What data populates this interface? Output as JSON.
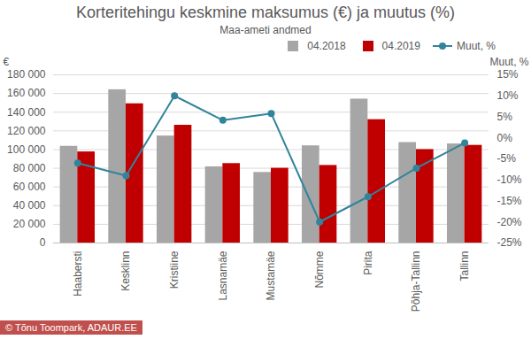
{
  "chart_data": {
    "type": "bar",
    "title": "Korteritehingu keskmine maksumus (€) ja muutus (%)",
    "subtitle": "Maa-ameti andmed",
    "caption": "© Tõnu Toompark, ADAUR.EE",
    "ylabel": "€",
    "y2label": "Muut, %",
    "categories": [
      "Haabersti",
      "Kesklinn",
      "Kristiine",
      "Lasnamäe",
      "Mustamäe",
      "Nõmme",
      "Pirita",
      "Põhja-Tallinn",
      "Tallinn"
    ],
    "series": [
      {
        "name": "04.2018",
        "type": "bar",
        "color": "#a6a6a6",
        "values": [
          103500,
          164000,
          114500,
          81500,
          75500,
          104000,
          154000,
          107500,
          106000
        ]
      },
      {
        "name": "04.2019",
        "type": "bar",
        "color": "#c00000",
        "values": [
          97500,
          149000,
          126000,
          85000,
          80000,
          83000,
          132000,
          100000,
          104500
        ]
      },
      {
        "name": "Muut, %",
        "type": "line",
        "axis": "y2",
        "color": "#31849b",
        "marker": "circle",
        "values": [
          -6,
          -9,
          10,
          4.2,
          5.8,
          -20,
          -14,
          -7.2,
          -1.2
        ]
      }
    ],
    "ylim": [
      0,
      180000
    ],
    "yticks": [
      0,
      {
        "value": 20000,
        "label": "20 000"
      },
      {
        "value": 40000,
        "label": "40 000"
      },
      {
        "value": 60000,
        "label": "60 000"
      },
      {
        "value": 80000,
        "label": "80 000"
      },
      {
        "value": 100000,
        "label": "100 000"
      },
      {
        "value": 120000,
        "label": "120 000"
      },
      {
        "value": 140000,
        "label": "140 000"
      },
      {
        "value": 160000,
        "label": "160 000"
      },
      {
        "value": 180000,
        "label": "180 000"
      }
    ],
    "y2lim": [
      -25,
      15
    ],
    "y2ticks": [
      {
        "value": -25,
        "label": "-25%"
      },
      {
        "value": -20,
        "label": "-20%"
      },
      {
        "value": -15,
        "label": "-15%"
      },
      {
        "value": -10,
        "label": "-10%"
      },
      {
        "value": -5,
        "label": "-5%"
      },
      {
        "value": 0,
        "label": "0%"
      },
      {
        "value": 5,
        "label": "5%"
      },
      {
        "value": 10,
        "label": "10%"
      },
      {
        "value": 15,
        "label": "15%"
      }
    ],
    "grid": true,
    "legend": "top-right"
  }
}
